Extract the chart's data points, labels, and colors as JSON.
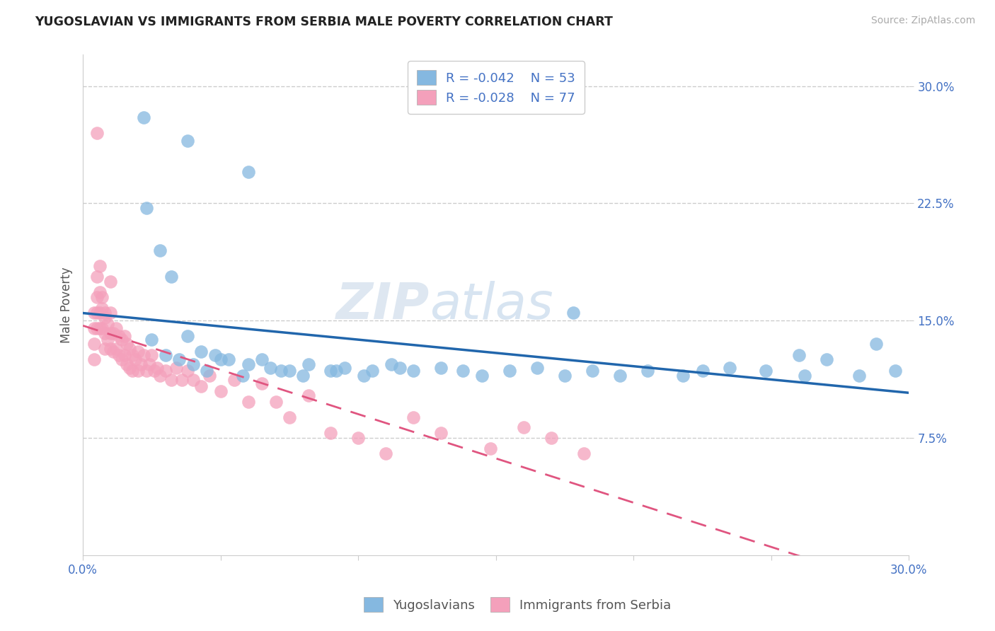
{
  "title": "YUGOSLAVIAN VS IMMIGRANTS FROM SERBIA MALE POVERTY CORRELATION CHART",
  "source": "Source: ZipAtlas.com",
  "ylabel": "Male Poverty",
  "xlim": [
    0.0,
    0.3
  ],
  "ylim": [
    0.0,
    0.32
  ],
  "color_blue": "#85b8e0",
  "color_pink": "#f4a0bb",
  "color_line_blue": "#2166ac",
  "color_line_pink": "#e05580",
  "watermark_zip": "ZIP",
  "watermark_atlas": "atlas",
  "yugoslavians_x": [
    0.022,
    0.038,
    0.06,
    0.023,
    0.028,
    0.032,
    0.035,
    0.038,
    0.043,
    0.048,
    0.053,
    0.06,
    0.068,
    0.075,
    0.08,
    0.09,
    0.095,
    0.105,
    0.112,
    0.12,
    0.13,
    0.138,
    0.145,
    0.155,
    0.165,
    0.175,
    0.185,
    0.195,
    0.205,
    0.218,
    0.225,
    0.235,
    0.248,
    0.26,
    0.27,
    0.282,
    0.295,
    0.025,
    0.03,
    0.04,
    0.045,
    0.05,
    0.058,
    0.065,
    0.072,
    0.082,
    0.092,
    0.102,
    0.115,
    0.178,
    0.262,
    0.288
  ],
  "yugoslavians_y": [
    0.28,
    0.265,
    0.245,
    0.222,
    0.195,
    0.178,
    0.125,
    0.14,
    0.13,
    0.128,
    0.125,
    0.122,
    0.12,
    0.118,
    0.115,
    0.118,
    0.12,
    0.118,
    0.122,
    0.118,
    0.12,
    0.118,
    0.115,
    0.118,
    0.12,
    0.115,
    0.118,
    0.115,
    0.118,
    0.115,
    0.118,
    0.12,
    0.118,
    0.128,
    0.125,
    0.115,
    0.118,
    0.138,
    0.128,
    0.122,
    0.118,
    0.125,
    0.115,
    0.125,
    0.118,
    0.122,
    0.118,
    0.115,
    0.12,
    0.155,
    0.115,
    0.135
  ],
  "serbia_x": [
    0.004,
    0.004,
    0.004,
    0.004,
    0.005,
    0.005,
    0.005,
    0.005,
    0.006,
    0.006,
    0.006,
    0.007,
    0.007,
    0.008,
    0.008,
    0.008,
    0.009,
    0.009,
    0.01,
    0.01,
    0.01,
    0.011,
    0.011,
    0.012,
    0.012,
    0.013,
    0.013,
    0.014,
    0.014,
    0.015,
    0.015,
    0.016,
    0.016,
    0.017,
    0.017,
    0.018,
    0.018,
    0.019,
    0.02,
    0.02,
    0.021,
    0.022,
    0.023,
    0.024,
    0.025,
    0.026,
    0.027,
    0.028,
    0.03,
    0.032,
    0.034,
    0.036,
    0.038,
    0.04,
    0.043,
    0.046,
    0.05,
    0.055,
    0.06,
    0.065,
    0.07,
    0.075,
    0.082,
    0.09,
    0.1,
    0.11,
    0.12,
    0.13,
    0.148,
    0.16,
    0.17,
    0.182,
    0.005,
    0.006,
    0.007,
    0.008,
    0.01
  ],
  "serbia_y": [
    0.155,
    0.145,
    0.135,
    0.125,
    0.178,
    0.165,
    0.155,
    0.145,
    0.168,
    0.155,
    0.145,
    0.158,
    0.145,
    0.152,
    0.142,
    0.132,
    0.148,
    0.138,
    0.155,
    0.142,
    0.132,
    0.142,
    0.13,
    0.145,
    0.132,
    0.14,
    0.128,
    0.138,
    0.125,
    0.14,
    0.128,
    0.135,
    0.122,
    0.132,
    0.12,
    0.128,
    0.118,
    0.125,
    0.13,
    0.118,
    0.122,
    0.128,
    0.118,
    0.122,
    0.128,
    0.118,
    0.12,
    0.115,
    0.118,
    0.112,
    0.12,
    0.112,
    0.118,
    0.112,
    0.108,
    0.115,
    0.105,
    0.112,
    0.098,
    0.11,
    0.098,
    0.088,
    0.102,
    0.078,
    0.075,
    0.065,
    0.088,
    0.078,
    0.068,
    0.082,
    0.075,
    0.065,
    0.27,
    0.185,
    0.165,
    0.155,
    0.175
  ]
}
